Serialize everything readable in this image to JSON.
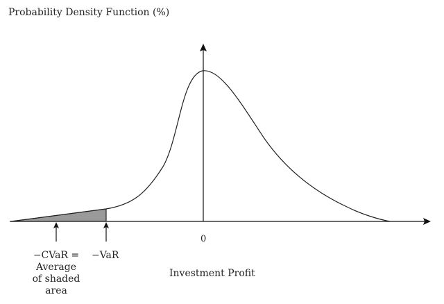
{
  "title": "Probability Density Function (%)",
  "x_axis_label": "Investment Profit",
  "zero_label": "0",
  "var_label": "−VaR",
  "cvar_label_lines": [
    "−CVaR =",
    "Average",
    "of shaded",
    "area"
  ],
  "colors": {
    "curve": "#222222",
    "shade": "#9a9a9a",
    "axis": "#111111"
  }
}
